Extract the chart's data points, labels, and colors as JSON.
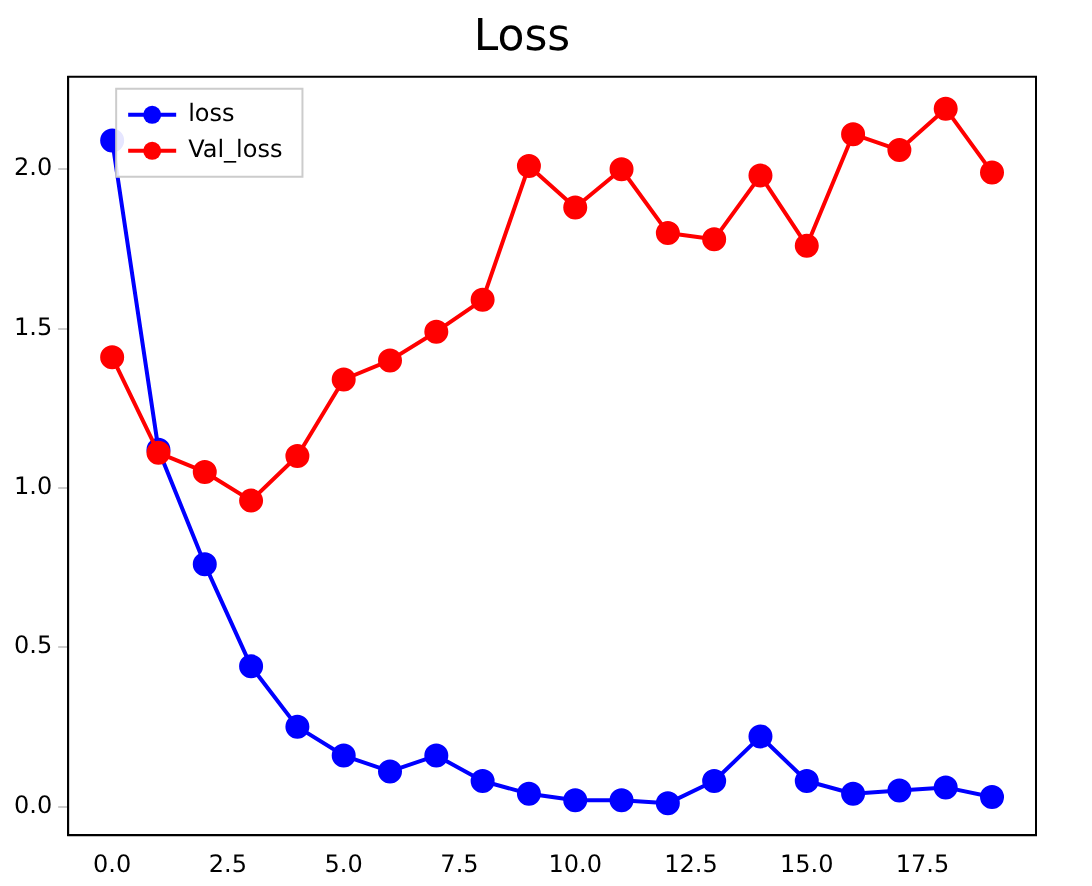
{
  "chart_data": {
    "type": "line",
    "title": "Loss",
    "x": [
      0,
      1,
      2,
      3,
      4,
      5,
      6,
      7,
      8,
      9,
      10,
      11,
      12,
      13,
      14,
      15,
      16,
      17,
      18,
      19
    ],
    "series": [
      {
        "name": "loss",
        "color": "#0000ff",
        "values": [
          2.09,
          1.12,
          0.76,
          0.44,
          0.25,
          0.16,
          0.11,
          0.16,
          0.08,
          0.04,
          0.02,
          0.02,
          0.01,
          0.08,
          0.22,
          0.08,
          0.04,
          0.05,
          0.06,
          0.03
        ]
      },
      {
        "name": "Val_loss",
        "color": "#ff0000",
        "values": [
          1.41,
          1.11,
          1.05,
          0.96,
          1.1,
          1.34,
          1.4,
          1.49,
          1.59,
          2.01,
          1.88,
          2.0,
          1.8,
          1.78,
          1.98,
          1.76,
          2.11,
          2.06,
          2.19,
          1.99
        ]
      }
    ],
    "xlim": [
      -0.95,
      19.95
    ],
    "xticks": [
      {
        "value": 0,
        "label": "0.0"
      },
      {
        "value": 2.5,
        "label": "2.5"
      },
      {
        "value": 5,
        "label": "5.0"
      },
      {
        "value": 7.5,
        "label": "7.5"
      },
      {
        "value": 10,
        "label": "10.0"
      },
      {
        "value": 12.5,
        "label": "12.5"
      },
      {
        "value": 15,
        "label": "15.0"
      },
      {
        "value": 17.5,
        "label": "17.5"
      }
    ],
    "ylim": [
      -0.09,
      2.29
    ],
    "yticks": [
      {
        "value": 0,
        "label": "0.0"
      },
      {
        "value": 0.5,
        "label": "0.5"
      },
      {
        "value": 1,
        "label": "1.0"
      },
      {
        "value": 1.5,
        "label": "1.5"
      },
      {
        "value": 2,
        "label": "2.0"
      }
    ],
    "grid": false,
    "legend": "top left",
    "marker": "circle",
    "line_style": "solid"
  }
}
